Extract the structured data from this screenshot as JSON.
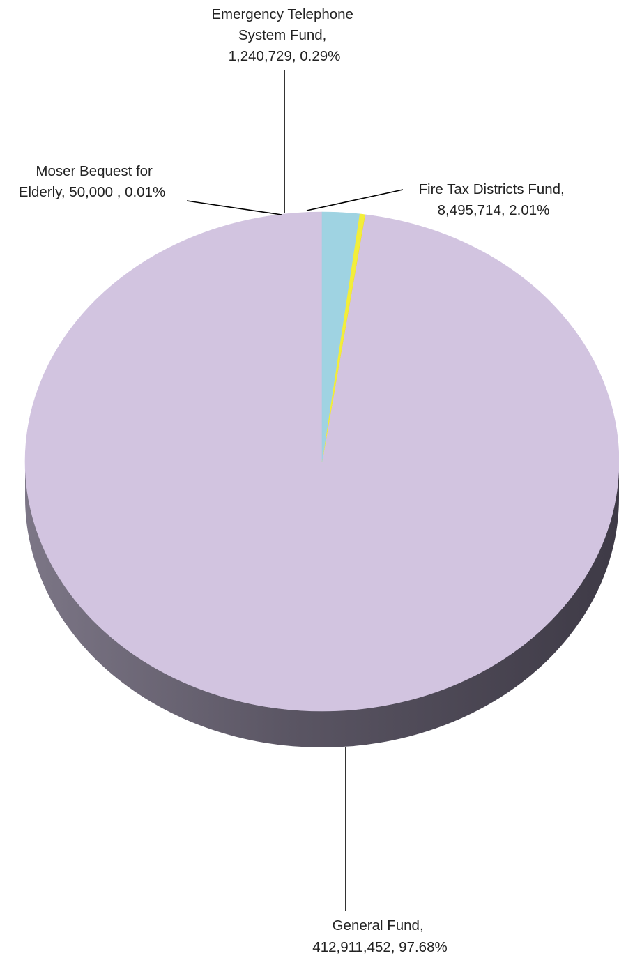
{
  "chart_data": {
    "type": "pie",
    "title": "",
    "slices": [
      {
        "name": "General Fund",
        "value": 412911452,
        "percent": "97.68%",
        "label_lines": [
          "General Fund,",
          "412,911,452, 97.68%"
        ],
        "color": "#D2C4E0",
        "side_color": "#5E5968"
      },
      {
        "name": "Moser Bequest for Elderly",
        "value": 50000,
        "percent": "0.01%",
        "label_lines": [
          "Moser Bequest for",
          "Elderly,  50,000 , 0.01%"
        ],
        "color": "#FFD400",
        "side_color": "#8A7A10"
      },
      {
        "name": "Emergency Telephone System Fund",
        "value": 1240729,
        "percent": "0.29%",
        "label_lines": [
          "Emergency Telephone",
          "System Fund,",
          "1,240,729, 0.29%"
        ],
        "color": "#F2EE3A",
        "side_color": "#8A8620"
      },
      {
        "name": "Fire Tax Districts Fund",
        "value": 8495714,
        "percent": "2.01%",
        "label_lines": [
          "Fire Tax Districts Fund,",
          "8,495,714, 2.01%"
        ],
        "color": "#9FD3E2",
        "side_color": "#4E7480"
      }
    ],
    "start_angle": "12 o'clock",
    "direction": "counterclockwise",
    "style": "3d-tilted",
    "legend": "none"
  }
}
